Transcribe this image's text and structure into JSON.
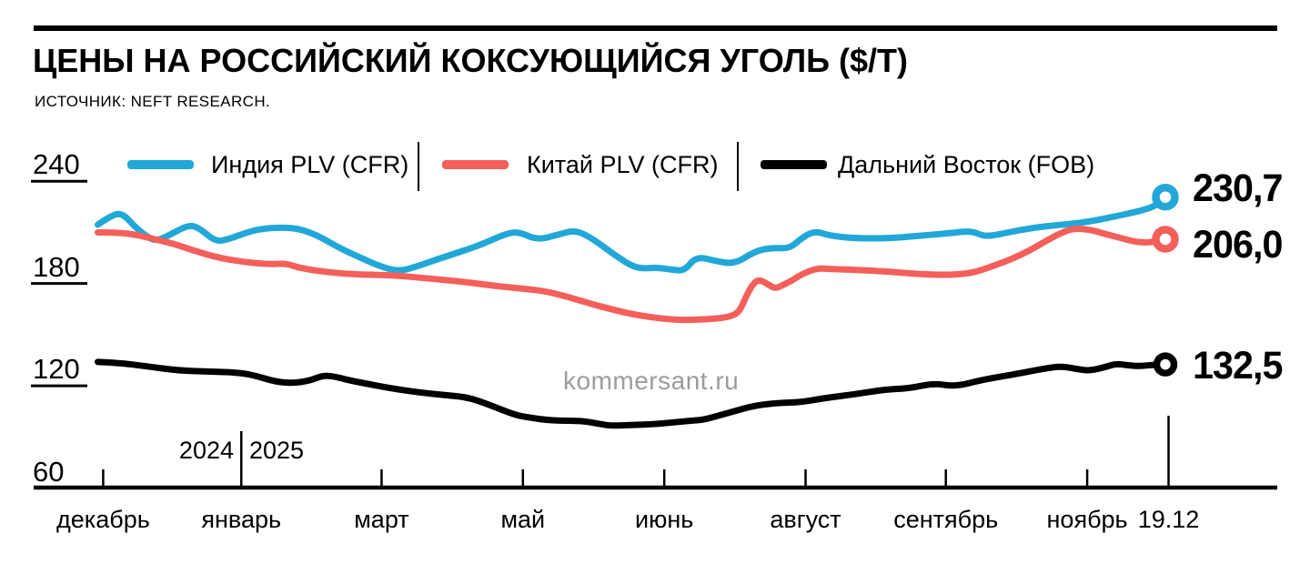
{
  "header": {
    "title": "ЦЕНЫ НА РОССИЙСКИЙ КОКСУЮЩИЙСЯ УГОЛЬ ($/Т)",
    "source": "ИСТОЧНИК: NEFT RESEARCH."
  },
  "watermark": "kommersant.ru",
  "chart_data": {
    "type": "line",
    "title": "ЦЕНЫ НА РОССИЙСКИЙ КОКСУЮЩИЙСЯ УГОЛЬ ($/Т)",
    "source": "ИСТОЧНИК: NEFT RESEARCH.",
    "unit": "$/т",
    "ylim": [
      60,
      240
    ],
    "yticks": [
      240,
      180,
      120,
      60
    ],
    "legend_position": "top",
    "axis_color": "#000000",
    "x_axis": {
      "ticks": [
        {
          "label": "декабрь",
          "f": 0.008,
          "type": "normal"
        },
        {
          "label": "январь",
          "f": 0.137,
          "type": "year-divider"
        },
        {
          "label": "март",
          "f": 0.268,
          "type": "normal"
        },
        {
          "label": "май",
          "f": 0.4,
          "type": "normal"
        },
        {
          "label": "июнь",
          "f": 0.532,
          "type": "normal"
        },
        {
          "label": "август",
          "f": 0.664,
          "type": "normal"
        },
        {
          "label": "сентябрь",
          "f": 0.795,
          "type": "normal"
        },
        {
          "label": "ноябрь",
          "f": 0.927,
          "type": "normal"
        },
        {
          "label": "19.12",
          "f": 1.003,
          "type": "end-marker"
        }
      ],
      "year_divider": {
        "left": "2024",
        "right": "2025"
      }
    },
    "series": [
      {
        "name": "Индия PLV (CFR)",
        "color": "#21a8d8",
        "end_label": "230,7",
        "end_value": 230.7,
        "points": [
          [
            0.003,
            214.5
          ],
          [
            0.012,
            218.5
          ],
          [
            0.025,
            222
          ],
          [
            0.038,
            213
          ],
          [
            0.05,
            207
          ],
          [
            0.058,
            205
          ],
          [
            0.07,
            208.5
          ],
          [
            0.088,
            214.5
          ],
          [
            0.098,
            212.5
          ],
          [
            0.113,
            204.5
          ],
          [
            0.125,
            206
          ],
          [
            0.14,
            209.5
          ],
          [
            0.154,
            212
          ],
          [
            0.175,
            213
          ],
          [
            0.192,
            212
          ],
          [
            0.209,
            208
          ],
          [
            0.228,
            201
          ],
          [
            0.247,
            195.5
          ],
          [
            0.267,
            190
          ],
          [
            0.284,
            187
          ],
          [
            0.301,
            190
          ],
          [
            0.319,
            194
          ],
          [
            0.341,
            198.5
          ],
          [
            0.362,
            203
          ],
          [
            0.383,
            209
          ],
          [
            0.396,
            210.5
          ],
          [
            0.413,
            205.5
          ],
          [
            0.432,
            208.5
          ],
          [
            0.449,
            211.5
          ],
          [
            0.466,
            206
          ],
          [
            0.485,
            197
          ],
          [
            0.506,
            188.5
          ],
          [
            0.525,
            189.5
          ],
          [
            0.54,
            188
          ],
          [
            0.551,
            187.5
          ],
          [
            0.562,
            196
          ],
          [
            0.581,
            193
          ],
          [
            0.598,
            191.5
          ],
          [
            0.617,
            199
          ],
          [
            0.632,
            201
          ],
          [
            0.649,
            200.5
          ],
          [
            0.659,
            206
          ],
          [
            0.672,
            211
          ],
          [
            0.687,
            208
          ],
          [
            0.71,
            206.5
          ],
          [
            0.742,
            206.5
          ],
          [
            0.77,
            208
          ],
          [
            0.798,
            209.5
          ],
          [
            0.819,
            211
          ],
          [
            0.831,
            207.5
          ],
          [
            0.846,
            209
          ],
          [
            0.865,
            211.5
          ],
          [
            0.886,
            213.5
          ],
          [
            0.912,
            215
          ],
          [
            0.931,
            216.5
          ],
          [
            0.954,
            219.5
          ],
          [
            0.976,
            222.5
          ],
          [
            0.991,
            225.5
          ],
          [
            1,
            230.7
          ]
        ]
      },
      {
        "name": "Китай PLV (CFR)",
        "color": "#f45f5b",
        "end_label": "206,0",
        "end_value": 206.0,
        "points": [
          [
            0.003,
            210
          ],
          [
            0.022,
            210
          ],
          [
            0.04,
            208.5
          ],
          [
            0.056,
            206
          ],
          [
            0.073,
            203.5
          ],
          [
            0.092,
            199.5
          ],
          [
            0.113,
            195.5
          ],
          [
            0.131,
            193.5
          ],
          [
            0.148,
            192
          ],
          [
            0.167,
            191.3
          ],
          [
            0.179,
            191.8
          ],
          [
            0.192,
            189
          ],
          [
            0.219,
            186.5
          ],
          [
            0.247,
            185.2
          ],
          [
            0.277,
            185
          ],
          [
            0.311,
            183
          ],
          [
            0.345,
            181
          ],
          [
            0.375,
            178.5
          ],
          [
            0.4,
            177
          ],
          [
            0.421,
            175.5
          ],
          [
            0.443,
            172
          ],
          [
            0.464,
            168
          ],
          [
            0.485,
            164.5
          ],
          [
            0.506,
            161.5
          ],
          [
            0.528,
            159.5
          ],
          [
            0.549,
            158.5
          ],
          [
            0.57,
            159
          ],
          [
            0.591,
            160
          ],
          [
            0.602,
            163
          ],
          [
            0.608,
            172
          ],
          [
            0.615,
            180
          ],
          [
            0.621,
            182.5
          ],
          [
            0.63,
            179
          ],
          [
            0.636,
            177
          ],
          [
            0.644,
            179.5
          ],
          [
            0.652,
            182
          ],
          [
            0.659,
            185
          ],
          [
            0.674,
            189
          ],
          [
            0.687,
            188.5
          ],
          [
            0.713,
            188
          ],
          [
            0.742,
            187
          ],
          [
            0.77,
            185.5
          ],
          [
            0.798,
            185
          ],
          [
            0.817,
            186
          ],
          [
            0.829,
            188
          ],
          [
            0.842,
            191
          ],
          [
            0.857,
            194.5
          ],
          [
            0.872,
            199
          ],
          [
            0.886,
            204
          ],
          [
            0.9,
            209
          ],
          [
            0.914,
            212.5
          ],
          [
            0.931,
            211.5
          ],
          [
            0.944,
            209
          ],
          [
            0.957,
            207
          ],
          [
            0.971,
            204.5
          ],
          [
            0.984,
            204
          ],
          [
            0.993,
            205
          ],
          [
            1,
            206
          ]
        ]
      },
      {
        "name": "Дальний Восток (FOB)",
        "color": "#000000",
        "end_label": "132,5",
        "end_value": 132.5,
        "points": [
          [
            0.003,
            134
          ],
          [
            0.022,
            133.5
          ],
          [
            0.048,
            131.5
          ],
          [
            0.077,
            129
          ],
          [
            0.107,
            128.3
          ],
          [
            0.134,
            127.8
          ],
          [
            0.15,
            126
          ],
          [
            0.168,
            122.5
          ],
          [
            0.185,
            121.5
          ],
          [
            0.201,
            123
          ],
          [
            0.213,
            126
          ],
          [
            0.224,
            125.5
          ],
          [
            0.239,
            123
          ],
          [
            0.252,
            121.5
          ],
          [
            0.275,
            118.7
          ],
          [
            0.304,
            116
          ],
          [
            0.328,
            114.5
          ],
          [
            0.349,
            113.2
          ],
          [
            0.37,
            108.5
          ],
          [
            0.392,
            103
          ],
          [
            0.404,
            101.5
          ],
          [
            0.427,
            99.5
          ],
          [
            0.455,
            99.5
          ],
          [
            0.472,
            97.5
          ],
          [
            0.483,
            96.5
          ],
          [
            0.502,
            97
          ],
          [
            0.523,
            97.5
          ],
          [
            0.54,
            98.5
          ],
          [
            0.557,
            99.5
          ],
          [
            0.568,
            100
          ],
          [
            0.583,
            102.5
          ],
          [
            0.597,
            105
          ],
          [
            0.617,
            108.5
          ],
          [
            0.64,
            110
          ],
          [
            0.659,
            110.3
          ],
          [
            0.682,
            112.8
          ],
          [
            0.71,
            115
          ],
          [
            0.738,
            117.8
          ],
          [
            0.761,
            118.5
          ],
          [
            0.784,
            121.5
          ],
          [
            0.804,
            119.5
          ],
          [
            0.829,
            123.5
          ],
          [
            0.857,
            126.5
          ],
          [
            0.886,
            130
          ],
          [
            0.903,
            131.5
          ],
          [
            0.918,
            129.8
          ],
          [
            0.929,
            128.8
          ],
          [
            0.944,
            131
          ],
          [
            0.954,
            133
          ],
          [
            0.965,
            132
          ],
          [
            0.976,
            131.5
          ],
          [
            0.988,
            132.3
          ],
          [
            1,
            132.5
          ]
        ]
      }
    ]
  }
}
